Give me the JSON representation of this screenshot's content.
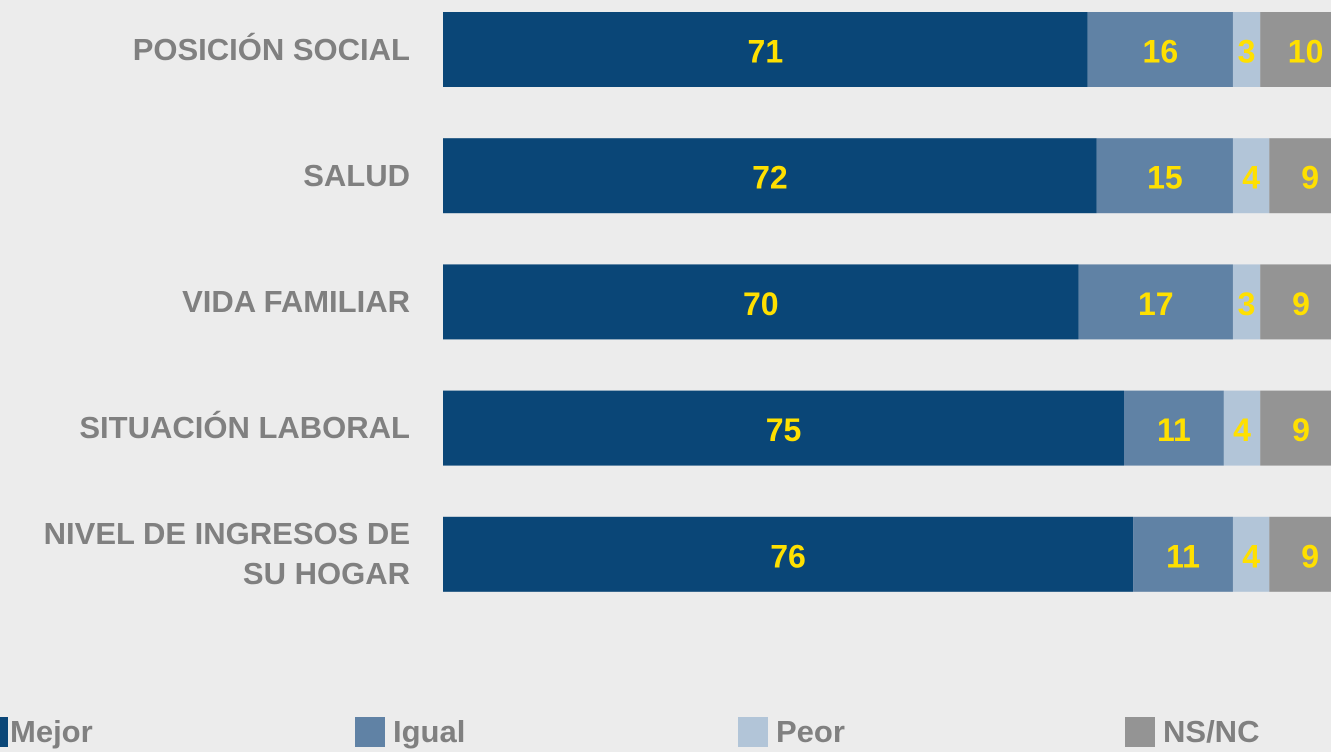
{
  "chart_data": {
    "type": "stacked-bar-horizontal",
    "categories": [
      "POSICIÓN SOCIAL",
      "SALUD",
      "VIDA FAMILIAR",
      "SITUACIÓN LABORAL",
      "NIVEL DE INGRESOS DE SU HOGAR"
    ],
    "series": [
      {
        "name": "Mejor",
        "color": "#0a4677",
        "values": [
          71,
          72,
          70,
          75,
          76
        ]
      },
      {
        "name": "Igual",
        "color": "#6082a5",
        "values": [
          16,
          15,
          17,
          11,
          11
        ]
      },
      {
        "name": "Peor",
        "color": "#b2c5d8",
        "values": [
          3,
          4,
          3,
          4,
          4
        ]
      },
      {
        "name": "NS/NC",
        "color": "#949494",
        "values": [
          10,
          9,
          9,
          9,
          9
        ]
      }
    ],
    "xlim": [
      0,
      100
    ],
    "label_color": "#ffe000",
    "legend": "bottom"
  }
}
